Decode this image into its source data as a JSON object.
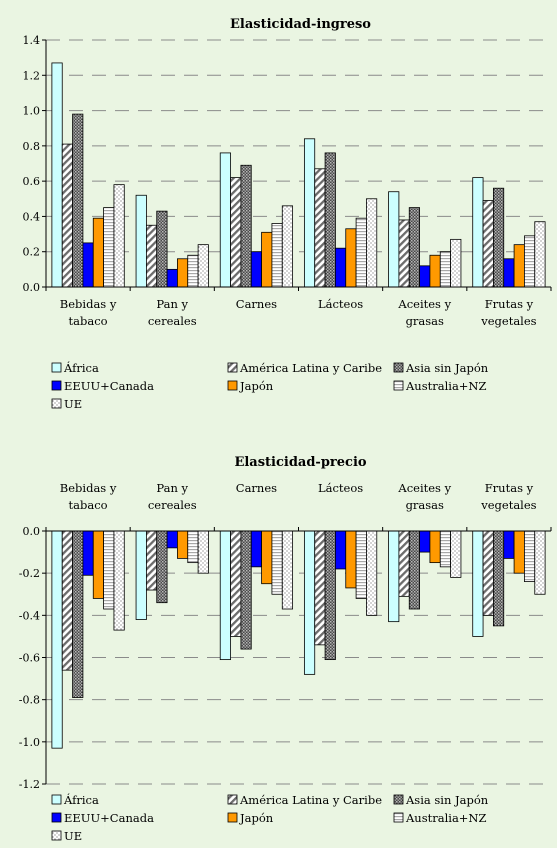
{
  "chart_data": [
    {
      "type": "bar",
      "title": "Elasticidad-ingreso",
      "categories": [
        [
          "Bebidas y",
          "tabaco"
        ],
        [
          "Pan y",
          "cereales"
        ],
        [
          "Carnes"
        ],
        [
          "Lácteos"
        ],
        [
          "Aceites y",
          "grasas"
        ],
        [
          "Frutas y",
          "vegetales"
        ]
      ],
      "ylim": [
        0,
        1.4
      ],
      "yticks": [
        "0.0",
        "0.2",
        "0.4",
        "0.6",
        "0.8",
        "1.0",
        "1.2",
        "1.4"
      ],
      "grid": true,
      "legend_position": "bottom",
      "series": [
        {
          "name": "África",
          "values": [
            1.27,
            0.52,
            0.76,
            0.84,
            0.54,
            0.62
          ]
        },
        {
          "name": "América Latina y Caribe",
          "values": [
            0.81,
            0.35,
            0.62,
            0.67,
            0.38,
            0.49
          ]
        },
        {
          "name": "Asia sin Japón",
          "values": [
            0.98,
            0.43,
            0.69,
            0.76,
            0.45,
            0.56
          ]
        },
        {
          "name": "EEUU+Canada",
          "values": [
            0.25,
            0.1,
            0.2,
            0.22,
            0.12,
            0.16
          ]
        },
        {
          "name": "Japón",
          "values": [
            0.39,
            0.16,
            0.31,
            0.33,
            0.18,
            0.24
          ]
        },
        {
          "name": "Australia+NZ",
          "values": [
            0.45,
            0.18,
            0.36,
            0.39,
            0.2,
            0.29
          ]
        },
        {
          "name": "UE",
          "values": [
            0.58,
            0.24,
            0.46,
            0.5,
            0.27,
            0.37
          ]
        }
      ]
    },
    {
      "type": "bar",
      "title": "Elasticidad-precio",
      "categories": [
        [
          "Bebidas y",
          "tabaco"
        ],
        [
          "Pan y",
          "cereales"
        ],
        [
          "Carnes"
        ],
        [
          "Lácteos"
        ],
        [
          "Aceites y",
          "grasas"
        ],
        [
          "Frutas y",
          "vegetales"
        ]
      ],
      "ylim": [
        -1.2,
        0.0
      ],
      "yticks": [
        "0.0",
        "-0.2",
        "-0.4",
        "-0.6",
        "-0.8",
        "-1.0",
        "-1.2"
      ],
      "grid": true,
      "legend_position": "bottom",
      "series": [
        {
          "name": "África",
          "values": [
            -1.03,
            -0.42,
            -0.61,
            -0.68,
            -0.43,
            -0.5
          ]
        },
        {
          "name": "América Latina y Caribe",
          "values": [
            -0.66,
            -0.28,
            -0.5,
            -0.54,
            -0.31,
            -0.4
          ]
        },
        {
          "name": "Asia sin Japón",
          "values": [
            -0.79,
            -0.34,
            -0.56,
            -0.61,
            -0.37,
            -0.45
          ]
        },
        {
          "name": "EEUU+Canada",
          "values": [
            -0.21,
            -0.08,
            -0.17,
            -0.18,
            -0.1,
            -0.13
          ]
        },
        {
          "name": "Japón",
          "values": [
            -0.32,
            -0.13,
            -0.25,
            -0.27,
            -0.15,
            -0.2
          ]
        },
        {
          "name": "Australia+NZ",
          "values": [
            -0.37,
            -0.15,
            -0.3,
            -0.32,
            -0.17,
            -0.24
          ]
        },
        {
          "name": "UE",
          "values": [
            -0.47,
            -0.2,
            -0.37,
            -0.4,
            -0.22,
            -0.3
          ]
        }
      ]
    }
  ],
  "colors": {
    "background": "#eaf5e2",
    "africa": "#ccffff",
    "latam": "#ffffff",
    "asia": "#808080",
    "eeuu": "#0000ff",
    "japon": "#ff9900",
    "australia": "#ffffff",
    "ue": "#ffffff"
  }
}
